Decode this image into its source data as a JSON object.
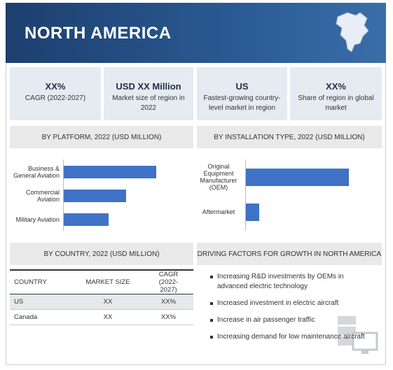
{
  "header": {
    "title": "NORTH AMERICA"
  },
  "stats": [
    {
      "value": "XX%",
      "label": "CAGR (2022-2027)"
    },
    {
      "value": "USD XX Million",
      "label": "Market size of region in 2022"
    },
    {
      "value": "US",
      "label": "Fastest-growing country-level market in region"
    },
    {
      "value": "XX%",
      "label": "Share of region in global market"
    }
  ],
  "chart_data": [
    {
      "type": "bar",
      "title": "BY PLATFORM, 2022 (USD MILLION)",
      "categories": [
        "Business & General Aviation",
        "Commercial Aviation",
        "Military Aviation"
      ],
      "values": [
        132,
        89,
        64
      ],
      "color": "#3f72c6"
    },
    {
      "type": "bar",
      "title": "BY INSTALLATION TYPE, 2022 (USD MILLION)",
      "categories": [
        "Original Equipment Manufacturer (OEM)",
        "Aftermarket"
      ],
      "values": [
        147,
        19
      ],
      "color": "#3f72c6"
    }
  ],
  "table": {
    "title": "BY COUNTRY, 2022 (USD MILLION)",
    "columns": [
      "COUNTRY",
      "MARKET SIZE",
      "CAGR (2022-2027)"
    ],
    "rows": [
      [
        "US",
        "XX",
        "XX%"
      ],
      [
        "Canada",
        "XX",
        "XX%"
      ]
    ]
  },
  "drivers": {
    "title": "DRIVING FACTORS FOR GROWTH IN NORTH AMERICA",
    "items": [
      "Increasing R&D investments by OEMs in advanced electric technology",
      "Increased investment in electric aircraft",
      "Increase in air passenger traffic",
      "Increasing demand for low maintenance aircraft"
    ]
  }
}
